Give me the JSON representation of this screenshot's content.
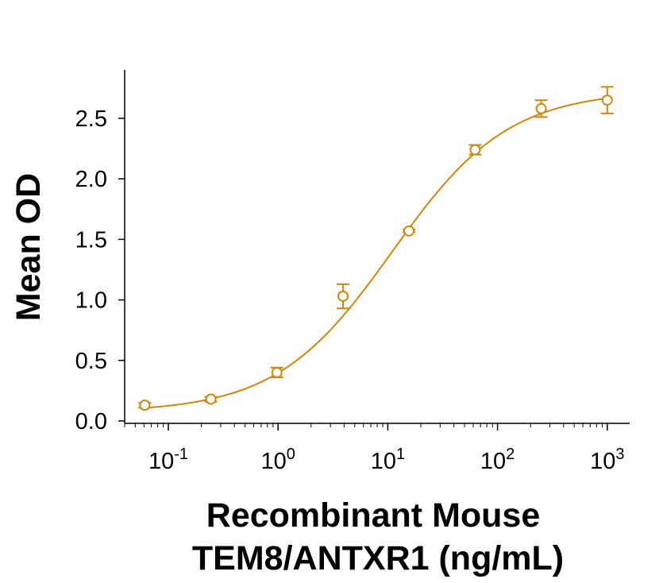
{
  "chart_data": {
    "type": "scatter",
    "title": "",
    "xlabel_lines": [
      "Recombinant Mouse",
      "TEM8/ANTXR1 (ng/mL)"
    ],
    "ylabel": "Mean OD",
    "x_scale": "log",
    "xlim": [
      0.04,
      1600
    ],
    "ylim": [
      -0.02,
      2.9
    ],
    "x_ticks": [
      {
        "value": 0.1,
        "base": "10",
        "exp": "-1"
      },
      {
        "value": 1,
        "base": "10",
        "exp": "0"
      },
      {
        "value": 10,
        "base": "10",
        "exp": "1"
      },
      {
        "value": 100,
        "base": "10",
        "exp": "2"
      },
      {
        "value": 1000,
        "base": "10",
        "exp": "3"
      }
    ],
    "y_ticks": [
      {
        "value": 0.0,
        "label": "0.0"
      },
      {
        "value": 0.5,
        "label": "0.5"
      },
      {
        "value": 1.0,
        "label": "1.0"
      },
      {
        "value": 1.5,
        "label": "1.5"
      },
      {
        "value": 2.0,
        "label": "2.0"
      },
      {
        "value": 2.5,
        "label": "2.5"
      }
    ],
    "grid": false,
    "legend": "none",
    "series": [
      {
        "color": "#d4860b",
        "marker": "open-circle",
        "points": [
          {
            "x": 0.061,
            "y": 0.13,
            "err": 0.02
          },
          {
            "x": 0.244,
            "y": 0.18,
            "err": 0.02
          },
          {
            "x": 0.977,
            "y": 0.4,
            "err": 0.04
          },
          {
            "x": 3.91,
            "y": 1.03,
            "err": 0.1
          },
          {
            "x": 15.6,
            "y": 1.57,
            "err": 0.01
          },
          {
            "x": 62.5,
            "y": 2.24,
            "err": 0.04
          },
          {
            "x": 250,
            "y": 2.58,
            "err": 0.07
          },
          {
            "x": 1000,
            "y": 2.65,
            "err": 0.11
          }
        ],
        "fit": {
          "model": "4PL",
          "bottom": 0.07,
          "top": 2.73,
          "ec50": 11.0,
          "hill": 0.82
        }
      }
    ]
  }
}
